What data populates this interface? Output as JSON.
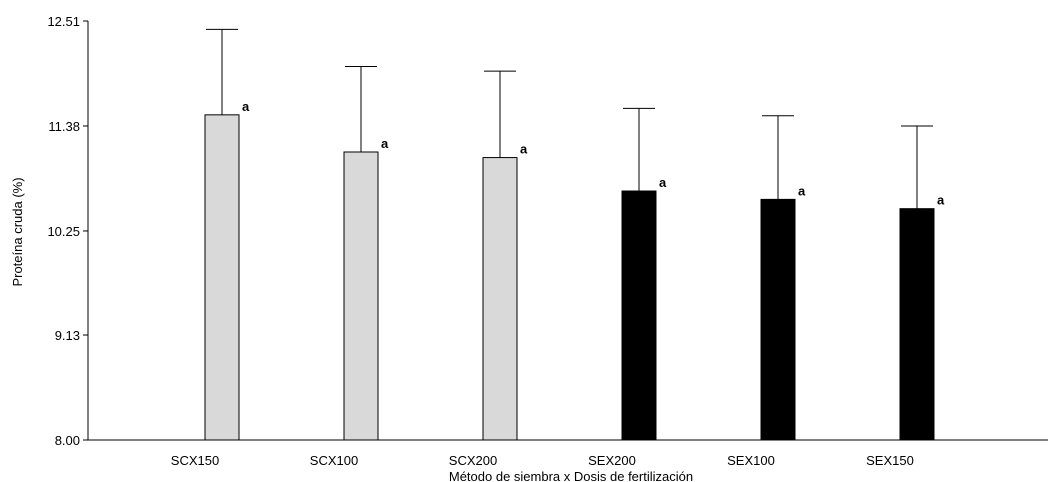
{
  "chart_data": {
    "type": "bar",
    "xlabel": "Método de siembra x Dosis de fertilización",
    "ylabel": "Proteína cruda (%)",
    "ylim": [
      8.0,
      12.51
    ],
    "yticks": [
      "8.00",
      "9.13",
      "10.25",
      "11.38",
      "12.51"
    ],
    "categories": [
      "SCX150",
      "SCX100",
      "SCX200",
      "SEX200",
      "SEX100",
      "SEX150"
    ],
    "values": [
      11.5,
      11.1,
      11.04,
      10.68,
      10.59,
      10.49
    ],
    "error_upper": [
      12.42,
      12.02,
      11.97,
      11.57,
      11.49,
      11.38
    ],
    "significance_labels": [
      "a",
      "a",
      "a",
      "a",
      "a",
      "a"
    ],
    "bar_colors": [
      "#d9d9d9",
      "#d9d9d9",
      "#d9d9d9",
      "#000000",
      "#000000",
      "#000000"
    ],
    "grid": false,
    "legend": "none"
  }
}
